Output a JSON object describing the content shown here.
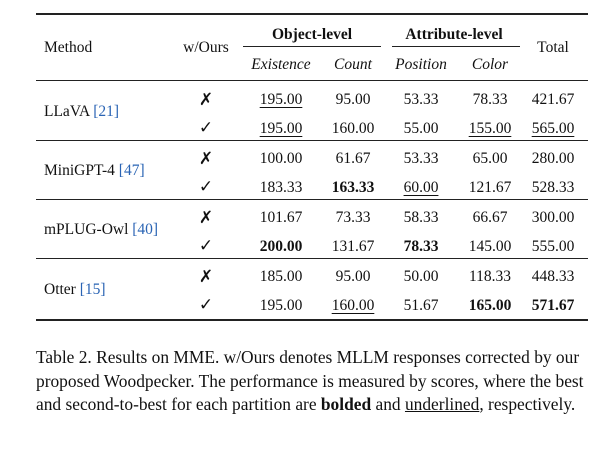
{
  "table": {
    "headers": {
      "method": "Method",
      "wours": "w/Ours",
      "object_level": "Object-level",
      "attribute_level": "Attribute-level",
      "total": "Total",
      "existence": "Existence",
      "count": "Count",
      "position": "Position",
      "color": "Color"
    },
    "rows": [
      {
        "method": "LLaVA ",
        "cite": "[21]",
        "sub": [
          {
            "mark": "✗",
            "existence": "195.00",
            "count": "95.00",
            "position": "53.33",
            "color": "78.33",
            "total": "421.67"
          },
          {
            "mark": "✓",
            "existence": "195.00",
            "count": "160.00",
            "position": "55.00",
            "color": "155.00",
            "total": "565.00"
          }
        ]
      },
      {
        "method": "MiniGPT-4 ",
        "cite": "[47]",
        "sub": [
          {
            "mark": "✗",
            "existence": "100.00",
            "count": "61.67",
            "position": "53.33",
            "color": "65.00",
            "total": "280.00"
          },
          {
            "mark": "✓",
            "existence": "183.33",
            "count": "163.33",
            "position": "60.00",
            "color": "121.67",
            "total": "528.33"
          }
        ]
      },
      {
        "method": "mPLUG-Owl ",
        "cite": "[40]",
        "sub": [
          {
            "mark": "✗",
            "existence": "101.67",
            "count": "73.33",
            "position": "58.33",
            "color": "66.67",
            "total": "300.00"
          },
          {
            "mark": "✓",
            "existence": "200.00",
            "count": "131.67",
            "position": "78.33",
            "color": "145.00",
            "total": "555.00"
          }
        ]
      },
      {
        "method": "Otter ",
        "cite": "[15]",
        "sub": [
          {
            "mark": "✗",
            "existence": "185.00",
            "count": "95.00",
            "position": "50.00",
            "color": "118.33",
            "total": "448.33"
          },
          {
            "mark": "✓",
            "existence": "195.00",
            "count": "160.00",
            "position": "51.67",
            "color": "165.00",
            "total": "571.67"
          }
        ]
      }
    ]
  },
  "caption": {
    "part1": "Table 2. Results on MME. w/Ours denotes MLLM responses corrected by our proposed Woodpecker. The performance is measured by scores, where the best and second-to-best for each partition are ",
    "bolded": "bolded",
    "and": " and ",
    "underlined": "underlined",
    "end": ", respectively."
  }
}
